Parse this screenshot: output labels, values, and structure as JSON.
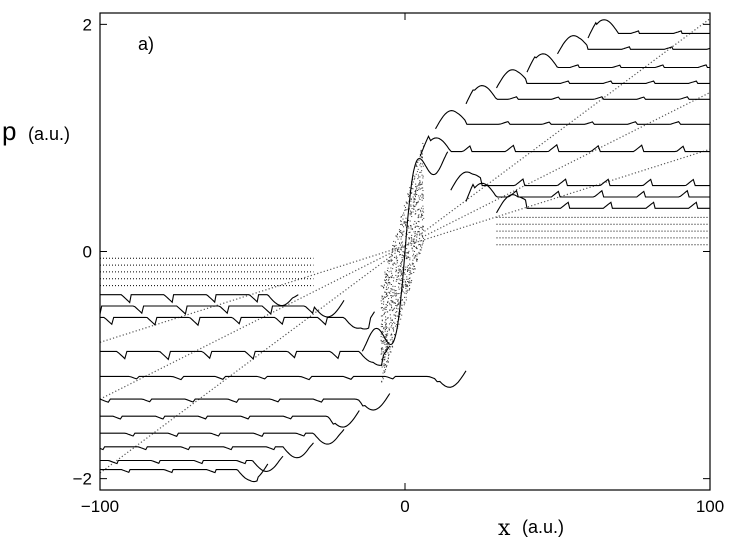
{
  "chart_data": {
    "type": "line",
    "panel_label": "a)",
    "xlabel": {
      "symbol": "x",
      "unit": "(a.u.)"
    },
    "ylabel": {
      "symbol": "p",
      "unit": "(a.u.)"
    },
    "xlim": [
      -100,
      100
    ],
    "ylim": [
      -2.1,
      2.1
    ],
    "xticks": [
      {
        "value": -100,
        "label": "−100"
      },
      {
        "value": 0,
        "label": "0"
      },
      {
        "value": 100,
        "label": "100"
      }
    ],
    "yticks": [
      {
        "value": -2,
        "label": "−2"
      },
      {
        "value": 0,
        "label": "0"
      },
      {
        "value": 2,
        "label": "2"
      }
    ],
    "grid": false,
    "left_branches": [
      {
        "x_end": -30,
        "p": -0.06,
        "dotted": true
      },
      {
        "x_end": -30,
        "p": -0.12,
        "dotted": true
      },
      {
        "x_end": -30,
        "p": -0.18,
        "dotted": true
      },
      {
        "x_end": -30,
        "p": -0.24,
        "dotted": true
      },
      {
        "x_end": -30,
        "p": -0.3,
        "dotted": true
      },
      {
        "x_end": -35,
        "p": -0.38,
        "dotted": false
      },
      {
        "x_end": -20,
        "p": -0.48,
        "dotted": false
      },
      {
        "x_end": -10,
        "p": -0.58,
        "dotted": false
      },
      {
        "x_end": -5,
        "p": -0.88,
        "dotted": false
      },
      {
        "x_end": 20,
        "p": -1.1,
        "dotted": false
      },
      {
        "x_end": -5,
        "p": -1.3,
        "dotted": false
      },
      {
        "x_end": -15,
        "p": -1.45,
        "dotted": false
      },
      {
        "x_end": -20,
        "p": -1.6,
        "dotted": false
      },
      {
        "x_end": -30,
        "p": -1.72,
        "dotted": false
      },
      {
        "x_end": -40,
        "p": -1.84,
        "dotted": false
      },
      {
        "x_end": -45,
        "p": -1.92,
        "dotted": false
      }
    ],
    "right_branches": [
      {
        "x_start": 60,
        "p": 1.92,
        "dotted": false
      },
      {
        "x_start": 50,
        "p": 1.78,
        "dotted": false
      },
      {
        "x_start": 40,
        "p": 1.62,
        "dotted": false
      },
      {
        "x_start": 30,
        "p": 1.48,
        "dotted": false
      },
      {
        "x_start": 20,
        "p": 1.34,
        "dotted": false
      },
      {
        "x_start": 10,
        "p": 1.12,
        "dotted": false
      },
      {
        "x_start": 5,
        "p": 0.88,
        "dotted": false
      },
      {
        "x_start": 15,
        "p": 0.58,
        "dotted": false
      },
      {
        "x_start": 20,
        "p": 0.48,
        "dotted": false
      },
      {
        "x_start": 30,
        "p": 0.38,
        "dotted": false
      },
      {
        "x_start": 30,
        "p": 0.3,
        "dotted": true
      },
      {
        "x_start": 30,
        "p": 0.24,
        "dotted": true
      },
      {
        "x_start": 30,
        "p": 0.18,
        "dotted": true
      },
      {
        "x_start": 30,
        "p": 0.12,
        "dotted": true
      },
      {
        "x_start": 30,
        "p": 0.06,
        "dotted": true
      }
    ],
    "diagonals": [
      {
        "x1": -100,
        "p1": -1.95,
        "x2": 100,
        "p2": 2.05
      },
      {
        "x1": -100,
        "p1": -1.3,
        "x2": 100,
        "p2": 1.4
      },
      {
        "x1": -100,
        "p1": -0.8,
        "x2": 100,
        "p2": 0.9
      }
    ]
  }
}
